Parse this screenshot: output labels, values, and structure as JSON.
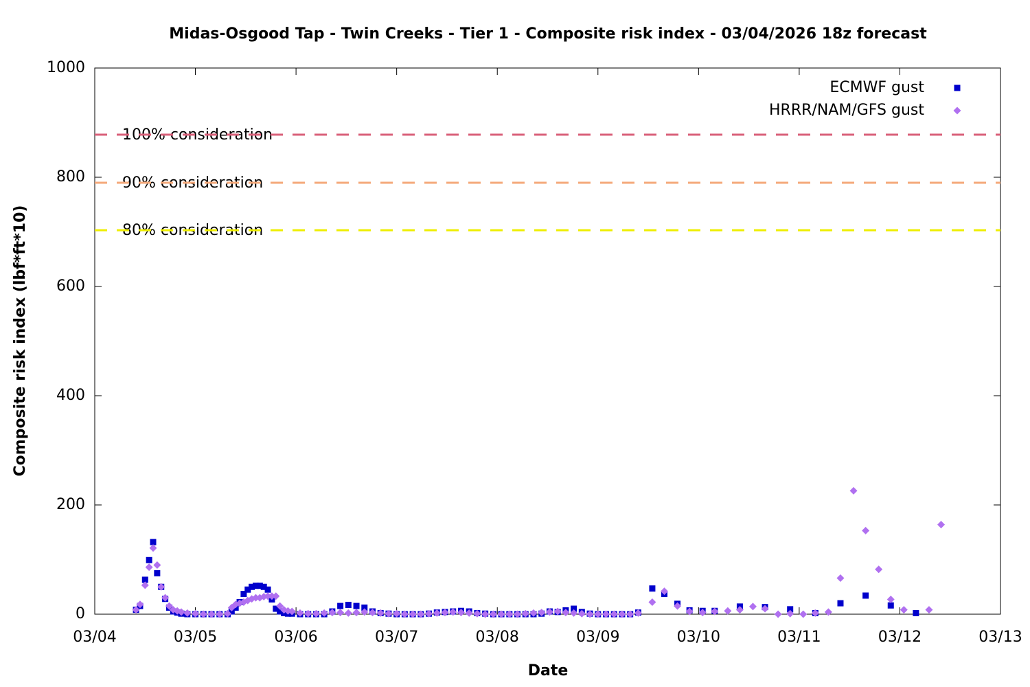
{
  "chart_data": {
    "type": "scatter",
    "title": "Midas-Osgood Tap - Twin Creeks - Tier 1 - Composite risk index - 03/04/2026 18z forecast",
    "x_label": "Date",
    "y_label": "Composite risk index (lbf*ft*10)",
    "xlim": [
      0,
      9
    ],
    "xticks": [
      {
        "value": 0,
        "label": "03/04"
      },
      {
        "value": 1,
        "label": "03/05"
      },
      {
        "value": 2,
        "label": "03/06"
      },
      {
        "value": 3,
        "label": "03/07"
      },
      {
        "value": 4,
        "label": "03/08"
      },
      {
        "value": 5,
        "label": "03/09"
      },
      {
        "value": 6,
        "label": "03/10"
      },
      {
        "value": 7,
        "label": "03/11"
      },
      {
        "value": 8,
        "label": "03/12"
      },
      {
        "value": 9,
        "label": "03/13"
      }
    ],
    "ylim": [
      0,
      1000
    ],
    "yticks": [
      0,
      200,
      400,
      600,
      800,
      1000
    ],
    "legend": "upper right",
    "reference_lines": [
      {
        "label": "100% consideration",
        "value": 878,
        "color": "#d9607a"
      },
      {
        "label": "90% consideration",
        "value": 790,
        "color": "#f4a97a"
      },
      {
        "label": "80% consideration",
        "value": 703,
        "color": "#eeee00"
      }
    ],
    "series": [
      {
        "name": "ECMWF gust",
        "color": "#0000cc",
        "marker": "square",
        "x": [
          0.41,
          0.45,
          0.5,
          0.54,
          0.58,
          0.62,
          0.66,
          0.7,
          0.74,
          0.78,
          0.82,
          0.86,
          0.92,
          1.0,
          1.08,
          1.16,
          1.24,
          1.32,
          1.36,
          1.4,
          1.44,
          1.48,
          1.52,
          1.56,
          1.6,
          1.64,
          1.68,
          1.72,
          1.76,
          1.8,
          1.84,
          1.88,
          1.92,
          1.96,
          2.04,
          2.12,
          2.2,
          2.28,
          2.36,
          2.44,
          2.52,
          2.6,
          2.68,
          2.76,
          2.84,
          2.92,
          3.0,
          3.08,
          3.16,
          3.24,
          3.32,
          3.4,
          3.48,
          3.56,
          3.64,
          3.72,
          3.8,
          3.88,
          3.96,
          4.04,
          4.12,
          4.2,
          4.28,
          4.36,
          4.44,
          4.52,
          4.6,
          4.68,
          4.76,
          4.84,
          4.92,
          5.0,
          5.08,
          5.16,
          5.24,
          5.32,
          5.4,
          5.54,
          5.66,
          5.79,
          5.91,
          6.04,
          6.16,
          6.41,
          6.66,
          6.91,
          7.16,
          7.41,
          7.66,
          7.91,
          8.16
        ],
        "values": [
          8,
          15,
          63,
          99,
          132,
          75,
          50,
          28,
          12,
          5,
          3,
          1,
          0,
          0,
          0,
          0,
          0,
          0,
          5,
          12,
          22,
          37,
          45,
          50,
          52,
          52,
          50,
          45,
          27,
          10,
          5,
          2,
          1,
          1,
          0,
          0,
          0,
          0,
          5,
          15,
          17,
          15,
          12,
          5,
          2,
          1,
          0,
          0,
          0,
          0,
          1,
          3,
          4,
          5,
          6,
          5,
          2,
          1,
          0,
          0,
          0,
          0,
          0,
          0,
          1,
          5,
          4,
          7,
          10,
          4,
          1,
          0,
          0,
          0,
          0,
          0,
          3,
          47,
          37,
          19,
          7,
          6,
          6,
          14,
          13,
          9,
          2,
          20,
          34,
          16,
          2
        ]
      },
      {
        "name": "HRRR/NAM/GFS gust",
        "color": "#b070f0",
        "marker": "diamond",
        "x": [
          0.41,
          0.45,
          0.5,
          0.54,
          0.58,
          0.62,
          0.66,
          0.7,
          0.74,
          0.78,
          0.82,
          0.86,
          0.92,
          1.0,
          1.08,
          1.16,
          1.24,
          1.32,
          1.36,
          1.4,
          1.44,
          1.48,
          1.52,
          1.56,
          1.6,
          1.64,
          1.68,
          1.72,
          1.76,
          1.8,
          1.84,
          1.88,
          1.92,
          1.96,
          2.04,
          2.12,
          2.2,
          2.28,
          2.36,
          2.44,
          2.52,
          2.6,
          2.68,
          2.76,
          2.84,
          2.92,
          3.0,
          3.08,
          3.16,
          3.24,
          3.32,
          3.4,
          3.48,
          3.56,
          3.64,
          3.72,
          3.8,
          3.88,
          3.96,
          4.04,
          4.12,
          4.2,
          4.28,
          4.36,
          4.44,
          4.52,
          4.6,
          4.68,
          4.76,
          4.84,
          4.92,
          5.0,
          5.08,
          5.16,
          5.24,
          5.32,
          5.4,
          5.54,
          5.66,
          5.79,
          5.91,
          6.04,
          6.16,
          6.29,
          6.41,
          6.54,
          6.66,
          6.79,
          6.91,
          7.04,
          7.16,
          7.29,
          7.41,
          7.54,
          7.66,
          7.79,
          7.91,
          8.04,
          8.29,
          8.41
        ],
        "values": [
          8,
          18,
          53,
          86,
          121,
          90,
          50,
          30,
          15,
          8,
          6,
          4,
          2,
          1,
          0,
          0,
          0,
          1,
          12,
          18,
          20,
          22,
          25,
          28,
          30,
          30,
          32,
          33,
          33,
          33,
          15,
          8,
          6,
          5,
          2,
          1,
          1,
          2,
          3,
          3,
          2,
          3,
          4,
          3,
          2,
          1,
          1,
          0,
          0,
          0,
          1,
          2,
          3,
          4,
          3,
          2,
          1,
          0,
          0,
          0,
          0,
          0,
          1,
          2,
          3,
          4,
          5,
          3,
          2,
          1,
          0,
          0,
          0,
          0,
          0,
          0,
          2,
          22,
          42,
          15,
          5,
          3,
          5,
          6,
          8,
          14,
          10,
          0,
          1,
          0,
          2,
          4,
          66,
          226,
          153,
          82,
          27,
          8,
          8,
          164
        ]
      }
    ]
  }
}
